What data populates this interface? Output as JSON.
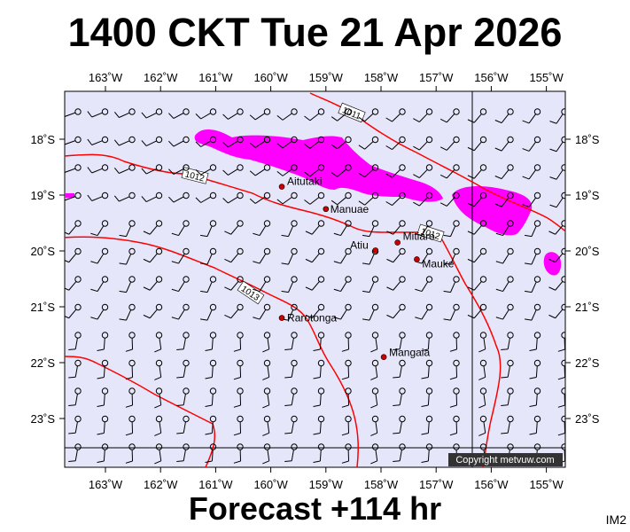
{
  "header": {
    "title": "1400 CKT Tue 21 Apr 2026"
  },
  "footer": {
    "forecast": "Forecast +114 hr",
    "product": "IM2"
  },
  "map": {
    "copyright": "Copyright metvuw.com",
    "colors": {
      "background": "#e6e6fa",
      "rain": "#ff00ff",
      "isobar": "#ff0000",
      "town": "#cc0000"
    },
    "lon_labels": [
      "163˚W",
      "162˚W",
      "161˚W",
      "160˚W",
      "159˚W",
      "158˚W",
      "157˚W",
      "156˚W",
      "155˚W"
    ],
    "lat_labels": [
      "18˚S",
      "19˚S",
      "20˚S",
      "21˚S",
      "22˚S",
      "23˚S"
    ],
    "isobars": [
      {
        "label": "1011"
      },
      {
        "label": "1012"
      },
      {
        "label": "1012"
      },
      {
        "label": "1013"
      }
    ],
    "towns": [
      {
        "name": "Aitutaki",
        "lon": -159.8,
        "lat": -18.85
      },
      {
        "name": "Manuae",
        "lon": -159.0,
        "lat": -19.25
      },
      {
        "name": "Mitiaro",
        "lon": -157.7,
        "lat": -19.85
      },
      {
        "name": "Atiu",
        "lon": -158.1,
        "lat": -19.99
      },
      {
        "name": "Mauke",
        "lon": -157.35,
        "lat": -20.15
      },
      {
        "name": "Rarotonga",
        "lon": -159.8,
        "lat": -21.2
      },
      {
        "name": "Mangaia",
        "lon": -157.95,
        "lat": -21.9
      }
    ],
    "wind_barbs": {
      "icon": "wind-barb-icon"
    }
  }
}
